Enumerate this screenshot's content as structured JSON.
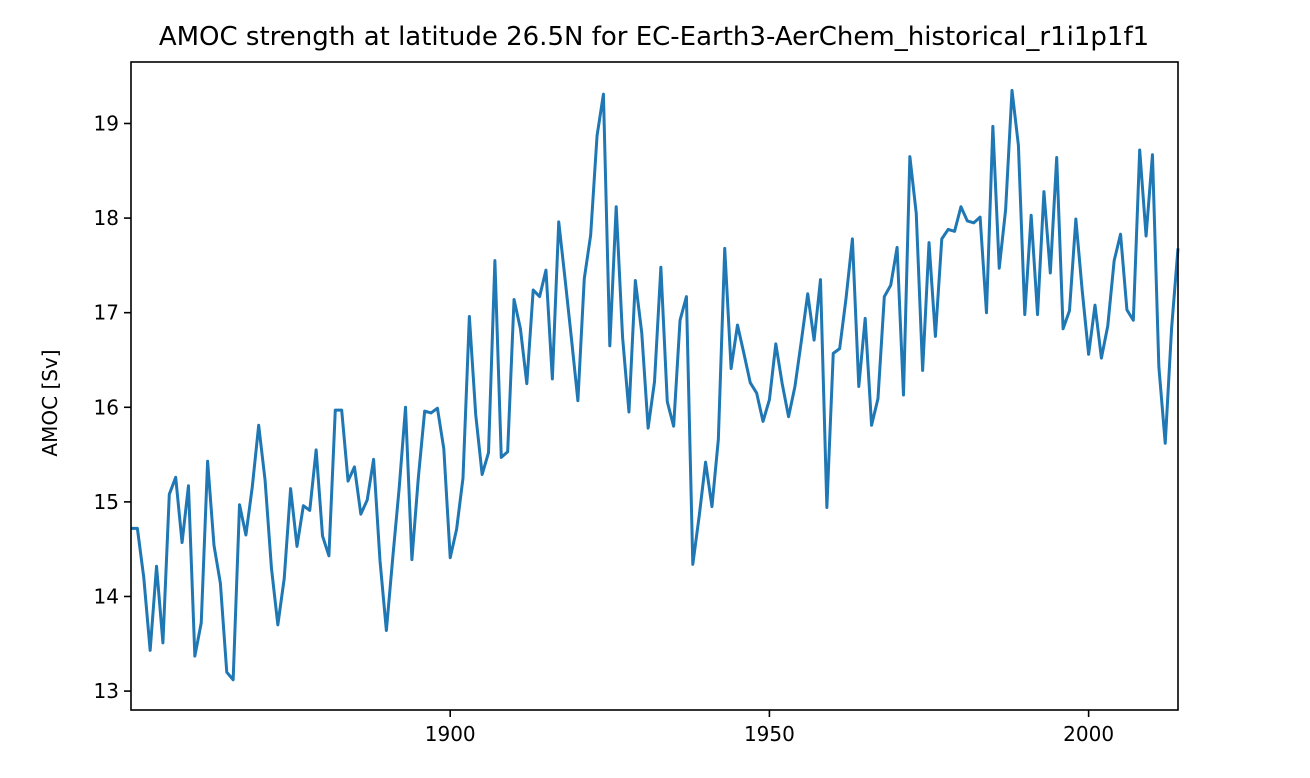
{
  "chart_data": {
    "type": "line",
    "title": "AMOC strength at latitude 26.5N for EC-Earth3-AerChem_historical_r1i1p1f1",
    "xlabel": "",
    "ylabel": "AMOC [Sv]",
    "xlim": [
      1850,
      2014
    ],
    "ylim": [
      12.8,
      19.65
    ],
    "xticks": [
      1900,
      1950,
      2000
    ],
    "yticks": [
      13,
      14,
      15,
      16,
      17,
      18,
      19
    ],
    "grid": false,
    "legend": "none",
    "line_color": "#1f77b4",
    "series": [
      {
        "x": [
          1850,
          1851,
          1852,
          1853,
          1854,
          1855,
          1856,
          1857,
          1858,
          1859,
          1860,
          1861,
          1862,
          1863,
          1864,
          1865,
          1866,
          1867,
          1868,
          1869,
          1870,
          1871,
          1872,
          1873,
          1874,
          1875,
          1876,
          1877,
          1878,
          1879,
          1880,
          1881,
          1882,
          1883,
          1884,
          1885,
          1886,
          1887,
          1888,
          1889,
          1890,
          1891,
          1892,
          1893,
          1894,
          1895,
          1896,
          1897,
          1898,
          1899,
          1900,
          1901,
          1902,
          1903,
          1904,
          1905,
          1906,
          1907,
          1908,
          1909,
          1910,
          1911,
          1912,
          1913,
          1914,
          1915,
          1916,
          1917,
          1918,
          1919,
          1920,
          1921,
          1922,
          1923,
          1924,
          1925,
          1926,
          1927,
          1928,
          1929,
          1930,
          1931,
          1932,
          1933,
          1934,
          1935,
          1936,
          1937,
          1938,
          1939,
          1940,
          1941,
          1942,
          1943,
          1944,
          1945,
          1946,
          1947,
          1948,
          1949,
          1950,
          1951,
          1952,
          1953,
          1954,
          1955,
          1956,
          1957,
          1958,
          1959,
          1960,
          1961,
          1962,
          1963,
          1964,
          1965,
          1966,
          1967,
          1968,
          1969,
          1970,
          1971,
          1972,
          1973,
          1974,
          1975,
          1976,
          1977,
          1978,
          1979,
          1980,
          1981,
          1982,
          1983,
          1984,
          1985,
          1986,
          1987,
          1988,
          1989,
          1990,
          1991,
          1992,
          1993,
          1994,
          1995,
          1996,
          1997,
          1998,
          1999,
          2000,
          2001,
          2002,
          2003,
          2004,
          2005,
          2006,
          2007,
          2008,
          2009,
          2010,
          2011,
          2012,
          2013,
          2014
        ],
        "values": [
          14.72,
          14.72,
          14.2,
          13.43,
          14.32,
          13.51,
          15.08,
          15.26,
          14.57,
          15.17,
          13.37,
          13.72,
          15.43,
          14.54,
          14.14,
          13.2,
          13.12,
          14.97,
          14.65,
          15.16,
          15.81,
          15.23,
          14.3,
          13.7,
          14.19,
          15.14,
          14.53,
          14.96,
          14.91,
          15.55,
          14.64,
          14.43,
          15.97,
          15.97,
          15.22,
          15.37,
          14.87,
          15.02,
          15.45,
          14.38,
          13.64,
          14.41,
          15.14,
          16.0,
          14.39,
          15.25,
          15.96,
          15.94,
          15.99,
          15.56,
          14.41,
          14.71,
          15.25,
          16.96,
          15.92,
          15.29,
          15.52,
          17.55,
          15.47,
          15.53,
          17.14,
          16.83,
          16.25,
          17.24,
          17.17,
          17.45,
          16.3,
          17.96,
          17.35,
          16.72,
          16.07,
          17.36,
          17.82,
          18.87,
          19.31,
          16.65,
          18.12,
          16.74,
          15.95,
          17.34,
          16.79,
          15.78,
          16.27,
          17.48,
          16.06,
          15.8,
          16.92,
          17.17,
          14.34,
          14.85,
          15.42,
          14.95,
          15.66,
          17.68,
          16.41,
          16.87,
          16.57,
          16.26,
          16.15,
          15.85,
          16.08,
          16.67,
          16.25,
          15.9,
          16.22,
          16.7,
          17.2,
          16.71,
          17.35,
          14.94,
          16.57,
          16.62,
          17.15,
          17.78,
          16.22,
          16.94,
          15.81,
          16.09,
          17.17,
          17.29,
          17.69,
          16.13,
          18.65,
          18.05,
          16.39,
          17.74,
          16.75,
          17.78,
          17.88,
          17.86,
          18.12,
          17.97,
          17.95,
          18.01,
          17.0,
          18.97,
          17.47,
          18.09,
          19.35,
          18.77,
          16.98,
          18.03,
          16.98,
          18.28,
          17.42,
          18.64,
          16.83,
          17.02,
          17.99,
          17.23,
          16.56,
          17.08,
          16.52,
          16.86,
          17.55,
          17.83,
          17.03,
          16.92,
          18.72,
          17.81,
          18.67,
          16.43,
          15.62,
          16.84,
          17.68
        ]
      }
    ]
  }
}
